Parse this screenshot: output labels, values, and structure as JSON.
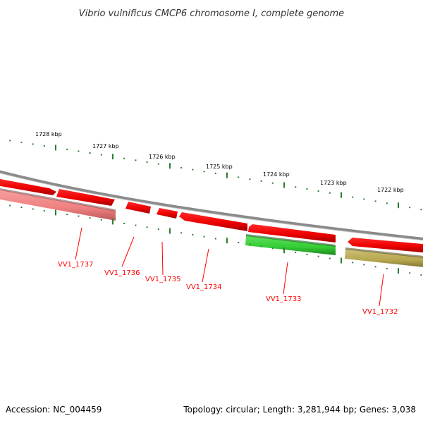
{
  "title": "Vibrio vulnificus CMCP6 chromosome I, complete genome",
  "footer": {
    "accession": "Accession: NC_004459",
    "summary": "Topology: circular; Length: 3,281,944 bp; Genes: 3,038"
  },
  "kbp_labels": [
    "1728 kbp",
    "1727 kbp",
    "1726 kbp",
    "1725 kbp",
    "1724 kbp",
    "1723 kbp",
    "1722 kbp"
  ],
  "genes": [
    {
      "label": "VV1_1737",
      "color": "#f08080"
    },
    {
      "label": "VV1_1736",
      "color": "#ff0000"
    },
    {
      "label": "VV1_1735",
      "color": "#ff0000"
    },
    {
      "label": "VV1_1734",
      "color": "#ff0000"
    },
    {
      "label": "VV1_1733",
      "color": "#33cc33"
    },
    {
      "label": "VV1_1732",
      "color": "#b5a64e"
    }
  ],
  "colors": {
    "label": "#ff0000",
    "backbone": "#888888",
    "ruler": "#2e7d32",
    "forward": "#ff0000",
    "pseudo": "#f08080",
    "green": "#33cc33",
    "olive": "#b5a64e"
  }
}
